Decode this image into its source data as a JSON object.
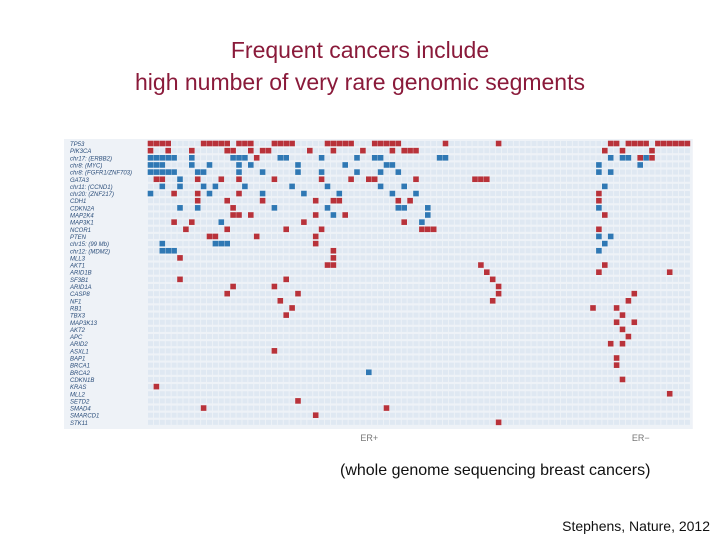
{
  "slide": {
    "title_line1": "Frequent cancers include",
    "title_line2": "high number of very rare genomic segments",
    "caption": "(whole genome sequencing breast cancers)",
    "citation": "Stephens, Nature, 2012",
    "title_color": "#8a1a3a"
  },
  "chart_data": {
    "type": "heatmap",
    "colors": {
      "mutation": "#b8323a",
      "copy_number": "#2f78b4",
      "empty": "#dfe8f2"
    },
    "genes": [
      "TP53",
      "PIK3CA",
      "chr17: (ERBB2)",
      "chr8: (MYC)",
      "chr8: (FGFR1/ZNF703)",
      "GATA3",
      "chr11: (CCND1)",
      "chr20: (ZNF217)",
      "CDH1",
      "CDKN2A",
      "MAP2K4",
      "MAP3K1",
      "NCOR1",
      "PTEN",
      "chr15: (99 Mb)",
      "chr12: (MDM2)",
      "MLL3",
      "AKT1",
      "ARID1B",
      "SF3B1",
      "ARID1A",
      "CASP8",
      "NF1",
      "RB1",
      "TBX3",
      "MAP3K13",
      "AKT2",
      "APC",
      "ARID2",
      "ASXL1",
      "BAP1",
      "BRCA1",
      "BRCA2",
      "CDKN1B",
      "KRAS",
      "MLL2",
      "SETD2",
      "SMAD4",
      "SMARCD1",
      "STK11"
    ],
    "column_groups": [
      {
        "label": "ER+",
        "start": 0,
        "end": 74
      },
      {
        "label": "ER−",
        "start": 75,
        "end": 91
      }
    ],
    "n_columns": 92,
    "cells": [
      [
        0,
        0,
        "m"
      ],
      [
        1,
        0,
        "m"
      ],
      [
        2,
        0,
        "m"
      ],
      [
        3,
        0,
        "m"
      ],
      [
        9,
        0,
        "m"
      ],
      [
        10,
        0,
        "m"
      ],
      [
        11,
        0,
        "m"
      ],
      [
        12,
        0,
        "m"
      ],
      [
        13,
        0,
        "m"
      ],
      [
        15,
        0,
        "m"
      ],
      [
        16,
        0,
        "m"
      ],
      [
        17,
        0,
        "m"
      ],
      [
        21,
        0,
        "m"
      ],
      [
        22,
        0,
        "m"
      ],
      [
        23,
        0,
        "m"
      ],
      [
        24,
        0,
        "m"
      ],
      [
        30,
        0,
        "m"
      ],
      [
        31,
        0,
        "m"
      ],
      [
        32,
        0,
        "m"
      ],
      [
        33,
        0,
        "m"
      ],
      [
        34,
        0,
        "m"
      ],
      [
        38,
        0,
        "m"
      ],
      [
        39,
        0,
        "m"
      ],
      [
        40,
        0,
        "m"
      ],
      [
        41,
        0,
        "m"
      ],
      [
        42,
        0,
        "m"
      ],
      [
        50,
        0,
        "m"
      ],
      [
        59,
        0,
        "m"
      ],
      [
        78,
        0,
        "m"
      ],
      [
        79,
        0,
        "m"
      ],
      [
        81,
        0,
        "m"
      ],
      [
        82,
        0,
        "m"
      ],
      [
        83,
        0,
        "m"
      ],
      [
        84,
        0,
        "m"
      ],
      [
        86,
        0,
        "m"
      ],
      [
        87,
        0,
        "m"
      ],
      [
        88,
        0,
        "m"
      ],
      [
        89,
        0,
        "m"
      ],
      [
        90,
        0,
        "m"
      ],
      [
        91,
        0,
        "m"
      ],
      [
        0,
        1,
        "m"
      ],
      [
        3,
        1,
        "m"
      ],
      [
        7,
        1,
        "m"
      ],
      [
        13,
        1,
        "m"
      ],
      [
        14,
        1,
        "m"
      ],
      [
        17,
        1,
        "m"
      ],
      [
        19,
        1,
        "m"
      ],
      [
        20,
        1,
        "m"
      ],
      [
        27,
        1,
        "m"
      ],
      [
        31,
        1,
        "m"
      ],
      [
        36,
        1,
        "m"
      ],
      [
        41,
        1,
        "m"
      ],
      [
        43,
        1,
        "m"
      ],
      [
        44,
        1,
        "m"
      ],
      [
        45,
        1,
        "m"
      ],
      [
        77,
        1,
        "m"
      ],
      [
        80,
        1,
        "m"
      ],
      [
        85,
        1,
        "m"
      ],
      [
        0,
        2,
        "c"
      ],
      [
        1,
        2,
        "c"
      ],
      [
        2,
        2,
        "c"
      ],
      [
        3,
        2,
        "c"
      ],
      [
        4,
        2,
        "c"
      ],
      [
        7,
        2,
        "c"
      ],
      [
        14,
        2,
        "c"
      ],
      [
        15,
        2,
        "c"
      ],
      [
        16,
        2,
        "c"
      ],
      [
        18,
        2,
        "m"
      ],
      [
        22,
        2,
        "c"
      ],
      [
        23,
        2,
        "c"
      ],
      [
        29,
        2,
        "c"
      ],
      [
        35,
        2,
        "c"
      ],
      [
        38,
        2,
        "c"
      ],
      [
        39,
        2,
        "c"
      ],
      [
        49,
        2,
        "c"
      ],
      [
        50,
        2,
        "c"
      ],
      [
        78,
        2,
        "c"
      ],
      [
        80,
        2,
        "c"
      ],
      [
        81,
        2,
        "c"
      ],
      [
        83,
        2,
        "m"
      ],
      [
        84,
        2,
        "c"
      ],
      [
        85,
        2,
        "m"
      ],
      [
        0,
        3,
        "c"
      ],
      [
        1,
        3,
        "c"
      ],
      [
        2,
        3,
        "c"
      ],
      [
        7,
        3,
        "c"
      ],
      [
        10,
        3,
        "c"
      ],
      [
        15,
        3,
        "c"
      ],
      [
        17,
        3,
        "c"
      ],
      [
        25,
        3,
        "c"
      ],
      [
        33,
        3,
        "c"
      ],
      [
        40,
        3,
        "c"
      ],
      [
        41,
        3,
        "c"
      ],
      [
        76,
        3,
        "c"
      ],
      [
        83,
        3,
        "c"
      ],
      [
        0,
        4,
        "c"
      ],
      [
        1,
        4,
        "c"
      ],
      [
        2,
        4,
        "c"
      ],
      [
        3,
        4,
        "c"
      ],
      [
        4,
        4,
        "c"
      ],
      [
        8,
        4,
        "c"
      ],
      [
        9,
        4,
        "c"
      ],
      [
        15,
        4,
        "c"
      ],
      [
        19,
        4,
        "c"
      ],
      [
        25,
        4,
        "c"
      ],
      [
        29,
        4,
        "c"
      ],
      [
        35,
        4,
        "c"
      ],
      [
        39,
        4,
        "c"
      ],
      [
        42,
        4,
        "c"
      ],
      [
        76,
        4,
        "c"
      ],
      [
        78,
        4,
        "c"
      ],
      [
        1,
        5,
        "m"
      ],
      [
        2,
        5,
        "m"
      ],
      [
        5,
        5,
        "c"
      ],
      [
        8,
        5,
        "m"
      ],
      [
        12,
        5,
        "m"
      ],
      [
        15,
        5,
        "m"
      ],
      [
        21,
        5,
        "m"
      ],
      [
        29,
        5,
        "m"
      ],
      [
        34,
        5,
        "m"
      ],
      [
        37,
        5,
        "m"
      ],
      [
        38,
        5,
        "m"
      ],
      [
        45,
        5,
        "m"
      ],
      [
        55,
        5,
        "m"
      ],
      [
        56,
        5,
        "m"
      ],
      [
        57,
        5,
        "m"
      ],
      [
        2,
        6,
        "c"
      ],
      [
        5,
        6,
        "c"
      ],
      [
        9,
        6,
        "c"
      ],
      [
        11,
        6,
        "c"
      ],
      [
        16,
        6,
        "c"
      ],
      [
        24,
        6,
        "c"
      ],
      [
        30,
        6,
        "c"
      ],
      [
        39,
        6,
        "c"
      ],
      [
        43,
        6,
        "c"
      ],
      [
        77,
        6,
        "c"
      ],
      [
        0,
        7,
        "c"
      ],
      [
        4,
        7,
        "m"
      ],
      [
        8,
        7,
        "m"
      ],
      [
        10,
        7,
        "c"
      ],
      [
        15,
        7,
        "m"
      ],
      [
        19,
        7,
        "c"
      ],
      [
        26,
        7,
        "c"
      ],
      [
        32,
        7,
        "c"
      ],
      [
        41,
        7,
        "c"
      ],
      [
        45,
        7,
        "c"
      ],
      [
        76,
        7,
        "m"
      ],
      [
        8,
        8,
        "m"
      ],
      [
        13,
        8,
        "m"
      ],
      [
        19,
        8,
        "m"
      ],
      [
        28,
        8,
        "m"
      ],
      [
        31,
        8,
        "m"
      ],
      [
        32,
        8,
        "m"
      ],
      [
        42,
        8,
        "m"
      ],
      [
        44,
        8,
        "m"
      ],
      [
        76,
        8,
        "m"
      ],
      [
        5,
        9,
        "c"
      ],
      [
        8,
        9,
        "c"
      ],
      [
        14,
        9,
        "m"
      ],
      [
        21,
        9,
        "c"
      ],
      [
        30,
        9,
        "c"
      ],
      [
        42,
        9,
        "c"
      ],
      [
        43,
        9,
        "c"
      ],
      [
        47,
        9,
        "c"
      ],
      [
        76,
        9,
        "c"
      ],
      [
        14,
        10,
        "m"
      ],
      [
        15,
        10,
        "m"
      ],
      [
        17,
        10,
        "m"
      ],
      [
        28,
        10,
        "m"
      ],
      [
        31,
        10,
        "c"
      ],
      [
        33,
        10,
        "m"
      ],
      [
        47,
        10,
        "c"
      ],
      [
        77,
        10,
        "m"
      ],
      [
        4,
        11,
        "m"
      ],
      [
        7,
        11,
        "m"
      ],
      [
        12,
        11,
        "c"
      ],
      [
        26,
        11,
        "m"
      ],
      [
        43,
        11,
        "m"
      ],
      [
        46,
        11,
        "c"
      ],
      [
        6,
        12,
        "m"
      ],
      [
        13,
        12,
        "m"
      ],
      [
        23,
        12,
        "m"
      ],
      [
        29,
        12,
        "m"
      ],
      [
        46,
        12,
        "m"
      ],
      [
        47,
        12,
        "m"
      ],
      [
        48,
        12,
        "m"
      ],
      [
        76,
        12,
        "m"
      ],
      [
        10,
        13,
        "m"
      ],
      [
        11,
        13,
        "m"
      ],
      [
        18,
        13,
        "m"
      ],
      [
        28,
        13,
        "m"
      ],
      [
        76,
        13,
        "c"
      ],
      [
        78,
        13,
        "c"
      ],
      [
        2,
        14,
        "c"
      ],
      [
        11,
        14,
        "c"
      ],
      [
        12,
        14,
        "c"
      ],
      [
        13,
        14,
        "c"
      ],
      [
        28,
        14,
        "m"
      ],
      [
        77,
        14,
        "c"
      ],
      [
        2,
        15,
        "c"
      ],
      [
        3,
        15,
        "c"
      ],
      [
        4,
        15,
        "c"
      ],
      [
        31,
        15,
        "m"
      ],
      [
        76,
        15,
        "c"
      ],
      [
        5,
        16,
        "m"
      ],
      [
        31,
        16,
        "m"
      ],
      [
        30,
        17,
        "m"
      ],
      [
        31,
        17,
        "m"
      ],
      [
        56,
        17,
        "m"
      ],
      [
        77,
        17,
        "m"
      ],
      [
        57,
        18,
        "m"
      ],
      [
        76,
        18,
        "m"
      ],
      [
        88,
        18,
        "m"
      ],
      [
        5,
        19,
        "m"
      ],
      [
        23,
        19,
        "m"
      ],
      [
        58,
        19,
        "m"
      ],
      [
        14,
        20,
        "m"
      ],
      [
        21,
        20,
        "m"
      ],
      [
        59,
        20,
        "m"
      ],
      [
        13,
        21,
        "m"
      ],
      [
        25,
        21,
        "m"
      ],
      [
        59,
        21,
        "m"
      ],
      [
        82,
        21,
        "m"
      ],
      [
        22,
        22,
        "m"
      ],
      [
        58,
        22,
        "m"
      ],
      [
        81,
        22,
        "m"
      ],
      [
        24,
        23,
        "m"
      ],
      [
        75,
        23,
        "m"
      ],
      [
        79,
        23,
        "m"
      ],
      [
        23,
        24,
        "m"
      ],
      [
        80,
        24,
        "m"
      ],
      [
        79,
        25,
        "m"
      ],
      [
        82,
        25,
        "m"
      ],
      [
        80,
        26,
        "m"
      ],
      [
        81,
        27,
        "m"
      ],
      [
        78,
        28,
        "m"
      ],
      [
        80,
        28,
        "m"
      ],
      [
        21,
        29,
        "m"
      ],
      [
        79,
        30,
        "m"
      ],
      [
        79,
        31,
        "m"
      ],
      [
        37,
        32,
        "c"
      ],
      [
        80,
        33,
        "m"
      ],
      [
        1,
        34,
        "m"
      ],
      [
        88,
        35,
        "m"
      ],
      [
        25,
        36,
        "m"
      ],
      [
        9,
        37,
        "m"
      ],
      [
        40,
        37,
        "m"
      ],
      [
        28,
        38,
        "m"
      ],
      [
        59,
        39,
        "m"
      ]
    ]
  }
}
